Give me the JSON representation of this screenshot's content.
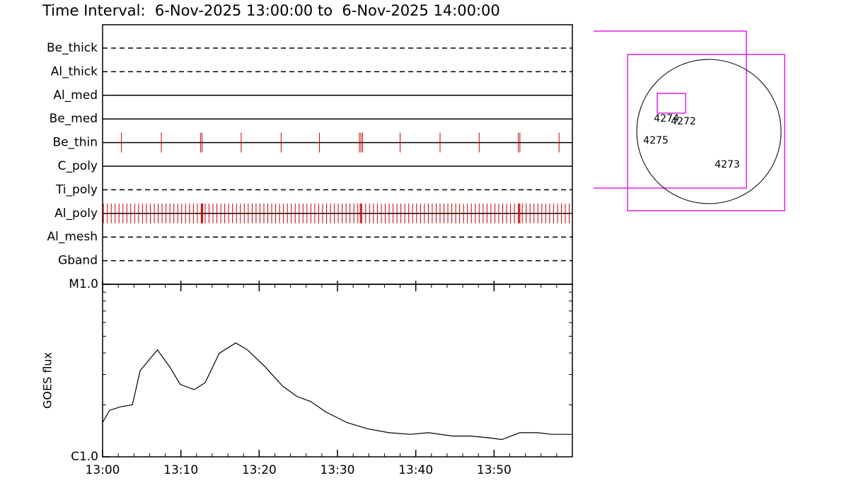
{
  "chart_data": [
    {
      "type": "event",
      "title": "Time Interval:  6-Nov-2025 13:00:00 to  6-Nov-2025 14:00:00",
      "xlim": [
        0,
        60
      ],
      "color": "#cc0000",
      "rows": [
        {
          "name": "Be_thick",
          "style": "dashed",
          "times": []
        },
        {
          "name": "Al_thick",
          "style": "dashed",
          "times": []
        },
        {
          "name": "Al_med",
          "style": "solid",
          "times": []
        },
        {
          "name": "Be_med",
          "style": "solid",
          "times": []
        },
        {
          "name": "Be_thin",
          "style": "solid",
          "times": [
            2.4,
            7.5,
            12.5,
            12.7,
            17.7,
            22.8,
            27.7,
            32.8,
            33.0,
            33.2,
            38.0,
            43.1,
            48.1,
            53.1,
            53.3,
            58.3
          ]
        },
        {
          "name": "C_poly",
          "style": "solid",
          "times": []
        },
        {
          "name": "Ti_poly",
          "style": "dashed",
          "times": []
        },
        {
          "name": "Al_poly",
          "style": "solid",
          "times": [
            0.1,
            0.6,
            1.1,
            1.6,
            2.1,
            2.6,
            3.1,
            3.6,
            4.1,
            4.6,
            5.1,
            5.6,
            6.1,
            6.6,
            7.1,
            7.6,
            8.1,
            8.6,
            9.1,
            9.6,
            10.1,
            10.6,
            11.1,
            11.6,
            12.1,
            12.6,
            12.7,
            12.8,
            13.1,
            13.6,
            14.1,
            14.6,
            15.1,
            15.6,
            16.1,
            16.6,
            17.1,
            17.6,
            18.1,
            18.6,
            19.1,
            19.6,
            20.1,
            20.6,
            21.1,
            21.6,
            22.1,
            22.6,
            23.1,
            23.6,
            24.1,
            24.6,
            25.1,
            25.6,
            26.1,
            26.6,
            27.1,
            27.6,
            28.1,
            28.6,
            29.1,
            29.6,
            30.1,
            30.6,
            31.1,
            31.6,
            32.1,
            32.6,
            32.9,
            33.0,
            33.1,
            33.6,
            34.1,
            34.6,
            35.1,
            35.6,
            36.1,
            36.6,
            37.1,
            37.6,
            38.1,
            38.6,
            39.1,
            39.6,
            40.1,
            40.6,
            41.1,
            41.6,
            42.1,
            42.6,
            43.1,
            43.6,
            44.1,
            44.6,
            45.1,
            45.6,
            46.1,
            46.6,
            47.1,
            47.6,
            48.1,
            48.6,
            49.1,
            49.6,
            50.1,
            50.6,
            51.1,
            51.6,
            52.1,
            52.6,
            53.1,
            53.2,
            53.3,
            53.6,
            54.1,
            54.6,
            55.1,
            55.6,
            56.1,
            56.6,
            57.1,
            57.6,
            58.1,
            58.6,
            59.1,
            59.6
          ]
        },
        {
          "name": "Al_mesh",
          "style": "dashed",
          "times": []
        },
        {
          "name": "Gband",
          "style": "dashed",
          "times": []
        }
      ]
    },
    {
      "type": "line",
      "ylabel": "GOES flux",
      "log_scale": true,
      "color": "#000000",
      "x": [
        0,
        0.9,
        2.3,
        3.8,
        4.8,
        7.0,
        8.6,
        9.9,
        11.7,
        13.1,
        14.9,
        17.0,
        18.5,
        20.8,
        23.0,
        24.8,
        26.6,
        28.5,
        31.2,
        33.9,
        36.6,
        39.3,
        41.6,
        44.7,
        47.0,
        49.2,
        51.0,
        53.3,
        55.6,
        57.3,
        59.9
      ],
      "values": [
        1.58e-06,
        1.86e-06,
        1.95e-06,
        2e-06,
        3.16e-06,
        4.17e-06,
        3.31e-06,
        2.63e-06,
        2.45e-06,
        2.69e-06,
        3.98e-06,
        4.57e-06,
        4.17e-06,
        3.31e-06,
        2.57e-06,
        2.24e-06,
        2.09e-06,
        1.82e-06,
        1.58e-06,
        1.45e-06,
        1.38e-06,
        1.35e-06,
        1.38e-06,
        1.32e-06,
        1.32e-06,
        1.29e-06,
        1.26e-06,
        1.38e-06,
        1.38e-06,
        1.35e-06,
        1.35e-06
      ],
      "xlim": [
        0,
        60
      ],
      "xticks": [
        {
          "value": 0,
          "label": "13:00"
        },
        {
          "value": 10,
          "label": "13:10"
        },
        {
          "value": 20,
          "label": "13:20"
        },
        {
          "value": 30,
          "label": "13:30"
        },
        {
          "value": 40,
          "label": "13:40"
        },
        {
          "value": 50,
          "label": "13:50"
        }
      ],
      "xminor": [
        0,
        2,
        4,
        6,
        8,
        10,
        12,
        14,
        16,
        18,
        20,
        22,
        24,
        26,
        28,
        30,
        32,
        34,
        36,
        38,
        40,
        42,
        44,
        46,
        48,
        50,
        52,
        54,
        56,
        58,
        60
      ],
      "ylim": [
        1e-06,
        1e-05
      ],
      "yticks": [
        {
          "value": 1e-06,
          "label": "C1.0"
        },
        {
          "value": 1e-05,
          "label": "M1.0"
        }
      ],
      "yminor": [
        2e-06,
        3e-06,
        4e-06,
        5e-06,
        6e-06,
        7e-06,
        8e-06,
        9e-06
      ]
    }
  ],
  "map": {
    "regions": [
      "4274",
      "4272",
      "4275",
      "4273"
    ]
  }
}
